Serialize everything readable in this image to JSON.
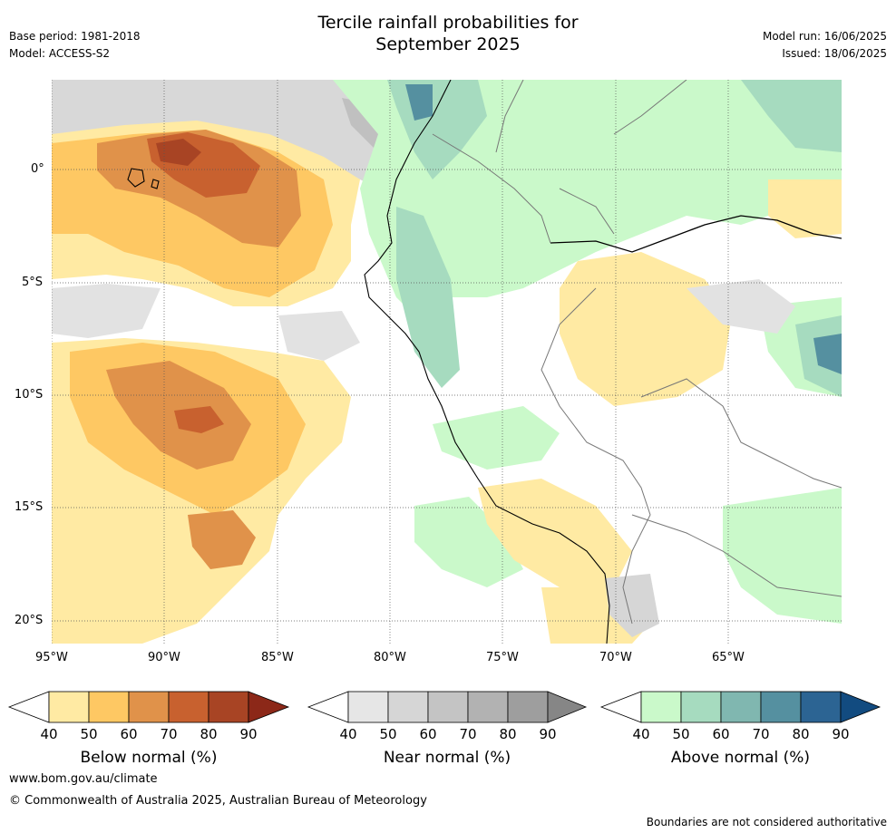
{
  "header": {
    "title_line1": "Tercile rainfall probabilities for",
    "title_line2": "September 2025",
    "base_period": "Base period: 1981-2018",
    "model": "Model: ACCESS-S2",
    "model_run": "Model run: 16/06/2025",
    "issued": "Issued: 18/06/2025"
  },
  "map": {
    "lon_ticks": [
      "95°W",
      "90°W",
      "85°W",
      "80°W",
      "75°W",
      "70°W",
      "65°W"
    ],
    "lat_ticks": [
      "0°",
      "5°S",
      "10°S",
      "15°S",
      "20°S"
    ]
  },
  "colorbars": [
    {
      "label": "Below normal (%)",
      "ticks": [
        "40",
        "50",
        "60",
        "70",
        "80",
        "90"
      ],
      "colors": [
        "#ffffff",
        "#ffeaa3",
        "#fec863",
        "#e0924a",
        "#c8612f",
        "#a84424",
        "#8c2818"
      ]
    },
    {
      "label": "Near normal (%)",
      "ticks": [
        "40",
        "50",
        "60",
        "70",
        "80",
        "90"
      ],
      "colors": [
        "#ffffff",
        "#e6e6e6",
        "#d6d6d6",
        "#c4c4c4",
        "#b2b2b2",
        "#9e9e9e",
        "#868686"
      ]
    },
    {
      "label": "Above normal (%)",
      "ticks": [
        "40",
        "50",
        "60",
        "70",
        "80",
        "90"
      ],
      "colors": [
        "#ffffff",
        "#caf9ca",
        "#a6dbbf",
        "#80b7b0",
        "#5590a0",
        "#2c6493",
        "#124b80"
      ]
    }
  ],
  "footer": {
    "url": "www.bom.gov.au/climate",
    "copyright": "© Commonwealth of Australia 2025, Australian Bureau of Meteorology",
    "disclaimer": "Boundaries are not considered authoritative"
  }
}
